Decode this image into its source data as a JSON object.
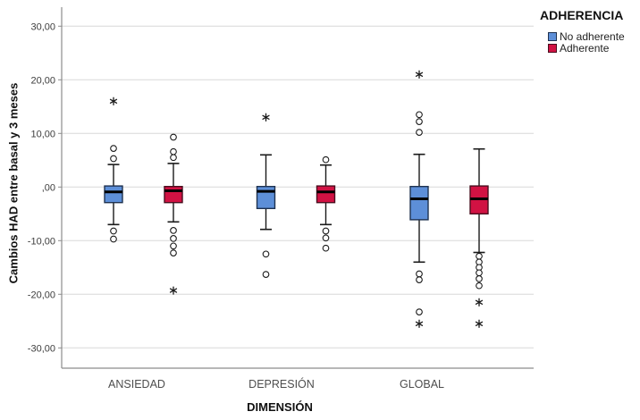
{
  "chart_data": {
    "type": "boxplot",
    "legend_title": "ADHERENCIA",
    "legend_position": "top-right",
    "xlabel": "DIMENSIÓN",
    "ylabel": "Cambios HAD entre basal y 3 meses",
    "categories": [
      "ANSIEDAD",
      "DEPRESIÓN",
      "GLOBAL"
    ],
    "ylim": [
      -33,
      33
    ],
    "grid": "horizontal",
    "y_ticks": [
      {
        "value": 30,
        "label": "30,00"
      },
      {
        "value": 20,
        "label": "20,00"
      },
      {
        "value": 10,
        "label": "10,00"
      },
      {
        "value": 0,
        "label": ",00"
      },
      {
        "value": -10,
        "label": "-10,00"
      },
      {
        "value": -20,
        "label": "-20,00"
      },
      {
        "value": -30,
        "label": "-30,00"
      }
    ],
    "series": [
      {
        "name": "No adherente",
        "color": "#5D8FD8",
        "border": "#1F3250",
        "boxes": [
          {
            "category": "ANSIEDAD",
            "whisker_low": -7.0,
            "q1": -2.9,
            "median": -0.9,
            "q3": 0.2,
            "whisker_high": 4.2,
            "outliers": [
              7.2,
              5.3,
              -8.2,
              -9.7
            ],
            "extremes": [
              16
            ]
          },
          {
            "category": "DEPRESIÓN",
            "whisker_low": -7.9,
            "q1": -4.0,
            "median": -0.8,
            "q3": 0.1,
            "whisker_high": 6.0,
            "outliers": [
              -12.5,
              -16.3
            ],
            "extremes": [
              13
            ]
          },
          {
            "category": "GLOBAL",
            "whisker_low": -14.0,
            "q1": -6.1,
            "median": -2.2,
            "q3": 0.1,
            "whisker_high": 6.1,
            "outliers": [
              13.5,
              12.2,
              10.2,
              -16.2,
              -17.3,
              -23.3
            ],
            "extremes": [
              21,
              -25.5
            ]
          }
        ]
      },
      {
        "name": "Adherente",
        "color": "#D11243",
        "border": "#4A0E1E",
        "boxes": [
          {
            "category": "ANSIEDAD",
            "whisker_low": -6.5,
            "q1": -2.9,
            "median": -0.7,
            "q3": 0.1,
            "whisker_high": 4.4,
            "outliers": [
              9.3,
              6.6,
              5.5,
              -8.1,
              -9.6,
              -11.0,
              -12.3
            ],
            "extremes": [
              -19.3
            ]
          },
          {
            "category": "DEPRESIÓN",
            "whisker_low": -7.0,
            "q1": -2.9,
            "median": -0.9,
            "q3": 0.2,
            "whisker_high": 4.1,
            "outliers": [
              5.1,
              -8.2,
              -9.5,
              -11.4
            ],
            "extremes": []
          },
          {
            "category": "GLOBAL",
            "whisker_low": -12.2,
            "q1": -5.0,
            "median": -2.2,
            "q3": 0.2,
            "whisker_high": 7.1,
            "outliers": [
              -12.9,
              -14.0,
              -15.0,
              -16.0,
              -17.1,
              -18.4
            ],
            "extremes": [
              -21.5,
              -25.5
            ]
          }
        ]
      }
    ],
    "style_colors": {
      "gridline": "#d8d8d8",
      "axis": "#8c8c8c",
      "tick_text": "#3d3d3d",
      "category_text": "#4d4d4d",
      "whisker": "#1a1a1a",
      "median": "#000000",
      "outlier_fill": "#ffffff"
    }
  }
}
